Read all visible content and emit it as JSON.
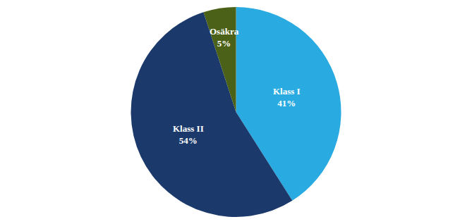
{
  "chart_data": {
    "type": "pie",
    "categories": [
      "Klass I",
      "Klass II",
      "Osäkra"
    ],
    "values": [
      41,
      54,
      5
    ],
    "value_labels": [
      "41%",
      "54%",
      "5%"
    ],
    "data_labels": true,
    "colors": [
      "#29ABE2",
      "#1B3A6B",
      "#4B6117"
    ]
  }
}
